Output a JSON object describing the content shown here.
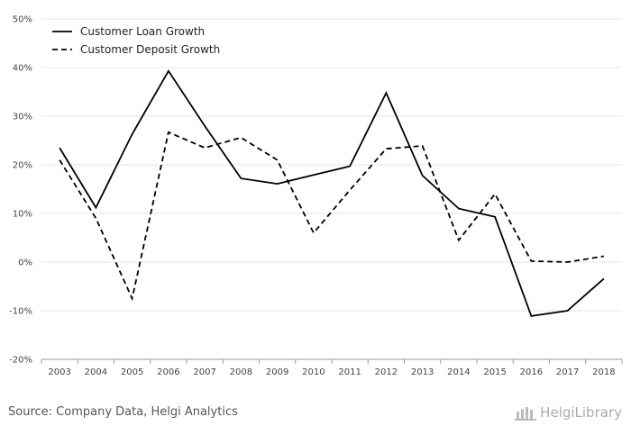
{
  "chart_data": {
    "type": "line",
    "title": "",
    "xlabel": "",
    "ylabel": "",
    "categories": [
      "2003",
      "2004",
      "2005",
      "2006",
      "2007",
      "2008",
      "2009",
      "2010",
      "2011",
      "2012",
      "2013",
      "2014",
      "2015",
      "2016",
      "2017",
      "2018"
    ],
    "series": [
      {
        "name": "Customer Loan Growth",
        "style": "solid",
        "color": "#000000",
        "values": [
          23.5,
          11.2,
          26.3,
          39.3,
          28.0,
          17.2,
          16.1,
          17.9,
          19.7,
          34.8,
          17.8,
          11.0,
          9.3,
          -11.1,
          -10.0,
          -3.4
        ]
      },
      {
        "name": "Customer Deposit Growth",
        "style": "dashed",
        "color": "#000000",
        "values": [
          21.0,
          9.0,
          -7.5,
          26.7,
          23.5,
          25.6,
          21.0,
          6.0,
          14.8,
          23.3,
          23.9,
          4.5,
          14.0,
          0.2,
          0.0,
          1.2
        ]
      }
    ],
    "ylim": [
      -20,
      50
    ],
    "yticks": [
      "-20%",
      "-10%",
      "0%",
      "10%",
      "20%",
      "30%",
      "40%",
      "50%"
    ],
    "ytick_values": [
      -20,
      -10,
      0,
      10,
      20,
      30,
      40,
      50
    ],
    "grid": true,
    "legend_position": "top-left"
  },
  "footer": {
    "source": "Source: Company Data, Helgi Analytics",
    "logo_text": "HelgiLibrary"
  }
}
